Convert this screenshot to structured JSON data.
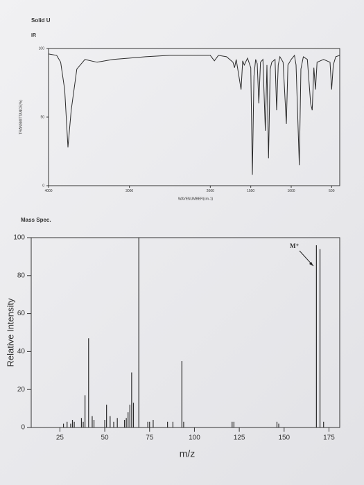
{
  "header": {
    "title": "Solid U"
  },
  "chart_data": [
    {
      "type": "line",
      "title": "IR",
      "xlabel": "WAVENUMBER(cm-1)",
      "ylabel": "TRANSMITTANCE(%)",
      "x": [
        4000,
        3900,
        3850,
        3800,
        3760,
        3720,
        3650,
        3550,
        3400,
        3200,
        3000,
        2800,
        2500,
        2200,
        2000,
        1950,
        1900,
        1800,
        1720,
        1700,
        1680,
        1620,
        1600,
        1580,
        1540,
        1500,
        1480,
        1460,
        1440,
        1420,
        1400,
        1380,
        1350,
        1320,
        1300,
        1280,
        1260,
        1240,
        1200,
        1180,
        1160,
        1140,
        1100,
        1060,
        1040,
        1000,
        960,
        940,
        900,
        880,
        850,
        800,
        760,
        740,
        720,
        700,
        680,
        600,
        520,
        500,
        480,
        450,
        400
      ],
      "values": [
        96,
        95,
        90,
        70,
        28,
        55,
        85,
        92,
        90,
        92,
        93,
        94,
        95,
        95,
        95,
        91,
        95,
        94,
        90,
        86,
        92,
        70,
        91,
        88,
        93,
        86,
        8,
        80,
        92,
        89,
        60,
        90,
        92,
        40,
        88,
        20,
        85,
        90,
        92,
        55,
        88,
        94,
        90,
        45,
        88,
        92,
        95,
        88,
        15,
        85,
        94,
        92,
        60,
        55,
        86,
        70,
        90,
        92,
        90,
        70,
        88,
        94,
        95
      ],
      "color": "#2b2b2b",
      "xlim": [
        4000,
        400
      ],
      "ylim": [
        0,
        100
      ],
      "xticks": [
        4000,
        3000,
        2000,
        1500,
        1000,
        500
      ],
      "yticks": [
        0,
        50,
        100
      ]
    },
    {
      "type": "stick",
      "title": "Mass Spec.",
      "xlabel": "m/z",
      "ylabel": "Relative Intensity",
      "x": [
        27,
        29,
        31,
        32,
        33,
        37,
        38,
        39,
        41,
        43,
        44,
        50,
        51,
        53,
        55,
        57,
        61,
        62,
        63,
        64,
        65,
        66,
        69,
        74,
        75,
        77,
        85,
        88,
        93,
        94,
        121,
        122,
        146,
        147,
        168,
        170,
        172
      ],
      "values": [
        2,
        3,
        2,
        4,
        3,
        5,
        3,
        17,
        47,
        6,
        4,
        4,
        12,
        6,
        3,
        5,
        4,
        5,
        8,
        12,
        29,
        13,
        100,
        3,
        3,
        4,
        3,
        3,
        35,
        3,
        3,
        3,
        3,
        2,
        96,
        94,
        3
      ],
      "color": "#2b2b2b",
      "xlim": [
        9,
        181
      ],
      "ylim": [
        0,
        100
      ],
      "xticks": [
        25,
        50,
        75,
        100,
        125,
        150,
        175
      ],
      "yticks": [
        0,
        20,
        40,
        60,
        80,
        100
      ],
      "annotations": [
        {
          "text": "M⁺"
        }
      ]
    }
  ]
}
